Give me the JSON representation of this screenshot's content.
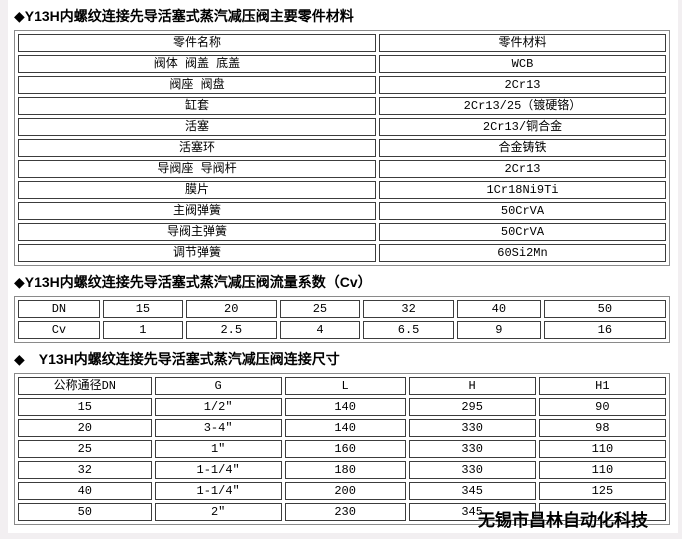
{
  "page": {
    "background": "#ffffff",
    "edge_color": "#f2eff1",
    "text_color": "#000000"
  },
  "sections": [
    {
      "title": "◆Y13H内螺纹连接先导活塞式蒸汽减压阀主要零件材料",
      "table": {
        "headers": [
          "零件名称",
          "零件材料"
        ],
        "rows": [
          [
            "阀体 阀盖 底盖",
            "WCB"
          ],
          [
            "阀座 阀盘",
            "2Cr13"
          ],
          [
            "缸套",
            "2Cr13/25（镀硬铬）"
          ],
          [
            "活塞",
            "2Cr13/铜合金"
          ],
          [
            "活塞环",
            "合金铸铁"
          ],
          [
            "导阀座 导阀杆",
            "2Cr13"
          ],
          [
            "膜片",
            "1Cr18Ni9Ti"
          ],
          [
            "主阀弹簧",
            "50CrVA"
          ],
          [
            "导阀主弹簧",
            "50CrVA"
          ],
          [
            "调节弹簧",
            "60Si2Mn"
          ]
        ]
      }
    },
    {
      "title": "◆Y13H内螺纹连接先导活塞式蒸汽减压阀流量系数（Cv）",
      "table": {
        "rows": [
          [
            "DN",
            "15",
            "20",
            "25",
            "32",
            "40",
            "50"
          ],
          [
            "Cv",
            "1",
            "2.5",
            "4",
            "6.5",
            "9",
            "16"
          ]
        ]
      }
    },
    {
      "title": "◆　Y13H内螺纹连接先导活塞式蒸汽减压阀连接尺寸",
      "table": {
        "headers": [
          "公称通径DN",
          "G",
          "L",
          "H",
          "H1"
        ],
        "rows": [
          [
            "15",
            "1/2″",
            "140",
            "295",
            "90"
          ],
          [
            "20",
            "3-4″",
            "140",
            "330",
            "98"
          ],
          [
            "25",
            "1″",
            "160",
            "330",
            "110"
          ],
          [
            "32",
            "1-1/4″",
            "180",
            "330",
            "110"
          ],
          [
            "40",
            "1-1/4″",
            "200",
            "345",
            "125"
          ],
          [
            "50",
            "2″",
            "230",
            "345",
            ""
          ]
        ]
      }
    }
  ],
  "watermark": {
    "text": "无锡市昌林自动化科技"
  }
}
